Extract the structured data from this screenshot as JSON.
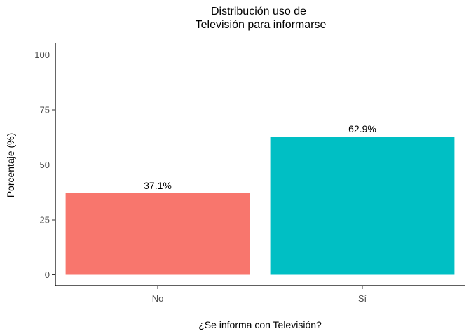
{
  "chart_data": {
    "type": "bar",
    "title": [
      "Distribución uso de",
      "Televisión para informarse"
    ],
    "xlabel": "¿Se informa con Televisión?",
    "ylabel": "Porcentaje (%)",
    "categories": [
      "No",
      "Sí"
    ],
    "values": [
      37.1,
      62.9
    ],
    "data_labels": [
      "37.1%",
      "62.9%"
    ],
    "colors": [
      "#F8766D",
      "#00BFC4"
    ],
    "ylim": [
      0,
      100
    ],
    "yticks": [
      0,
      25,
      50,
      75,
      100
    ],
    "grid": false,
    "legend": "none"
  }
}
